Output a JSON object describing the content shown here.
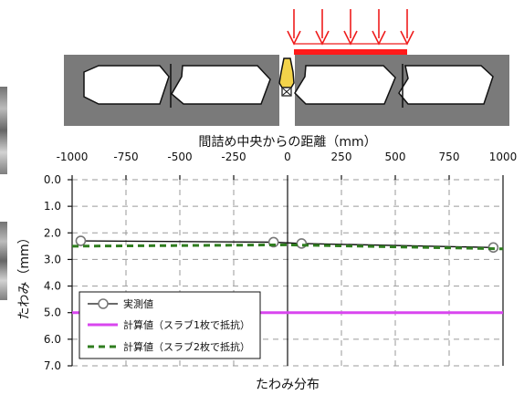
{
  "chart_data": {
    "type": "line",
    "title": "たわみ分布",
    "xlabel": "間詰め中央からの距離（mm）",
    "ylabel": "たわみ（mm）",
    "x_ticks": [
      -1000,
      -750,
      -500,
      -250,
      0,
      250,
      500,
      750,
      1000
    ],
    "y_ticks": [
      "0.0",
      "1.0",
      "2.0",
      "3.0",
      "4.0",
      "5.0",
      "6.0",
      "7.0"
    ],
    "xlim": [
      -1000,
      1000
    ],
    "ylim": [
      0,
      7
    ],
    "y_reversed": true,
    "grid": true,
    "legend_position": "bottom-left",
    "series": [
      {
        "name": "実測値",
        "style": "line-with-open-circles",
        "color": "#111111",
        "points": [
          [
            -960,
            2.3
          ],
          [
            -65,
            2.35
          ],
          [
            65,
            2.4
          ],
          [
            955,
            2.55
          ]
        ]
      },
      {
        "name": "計算値（スラブ1枚で抵抗）",
        "style": "solid",
        "color": "#d946ef",
        "points": [
          [
            -1000,
            5.0
          ],
          [
            1000,
            5.0
          ]
        ]
      },
      {
        "name": "計算値（スラブ2枚で抵抗）",
        "style": "dashed",
        "color": "#2f7d1f",
        "points": [
          [
            -1000,
            2.5
          ],
          [
            0,
            2.45
          ],
          [
            1000,
            2.6
          ]
        ]
      }
    ]
  }
}
